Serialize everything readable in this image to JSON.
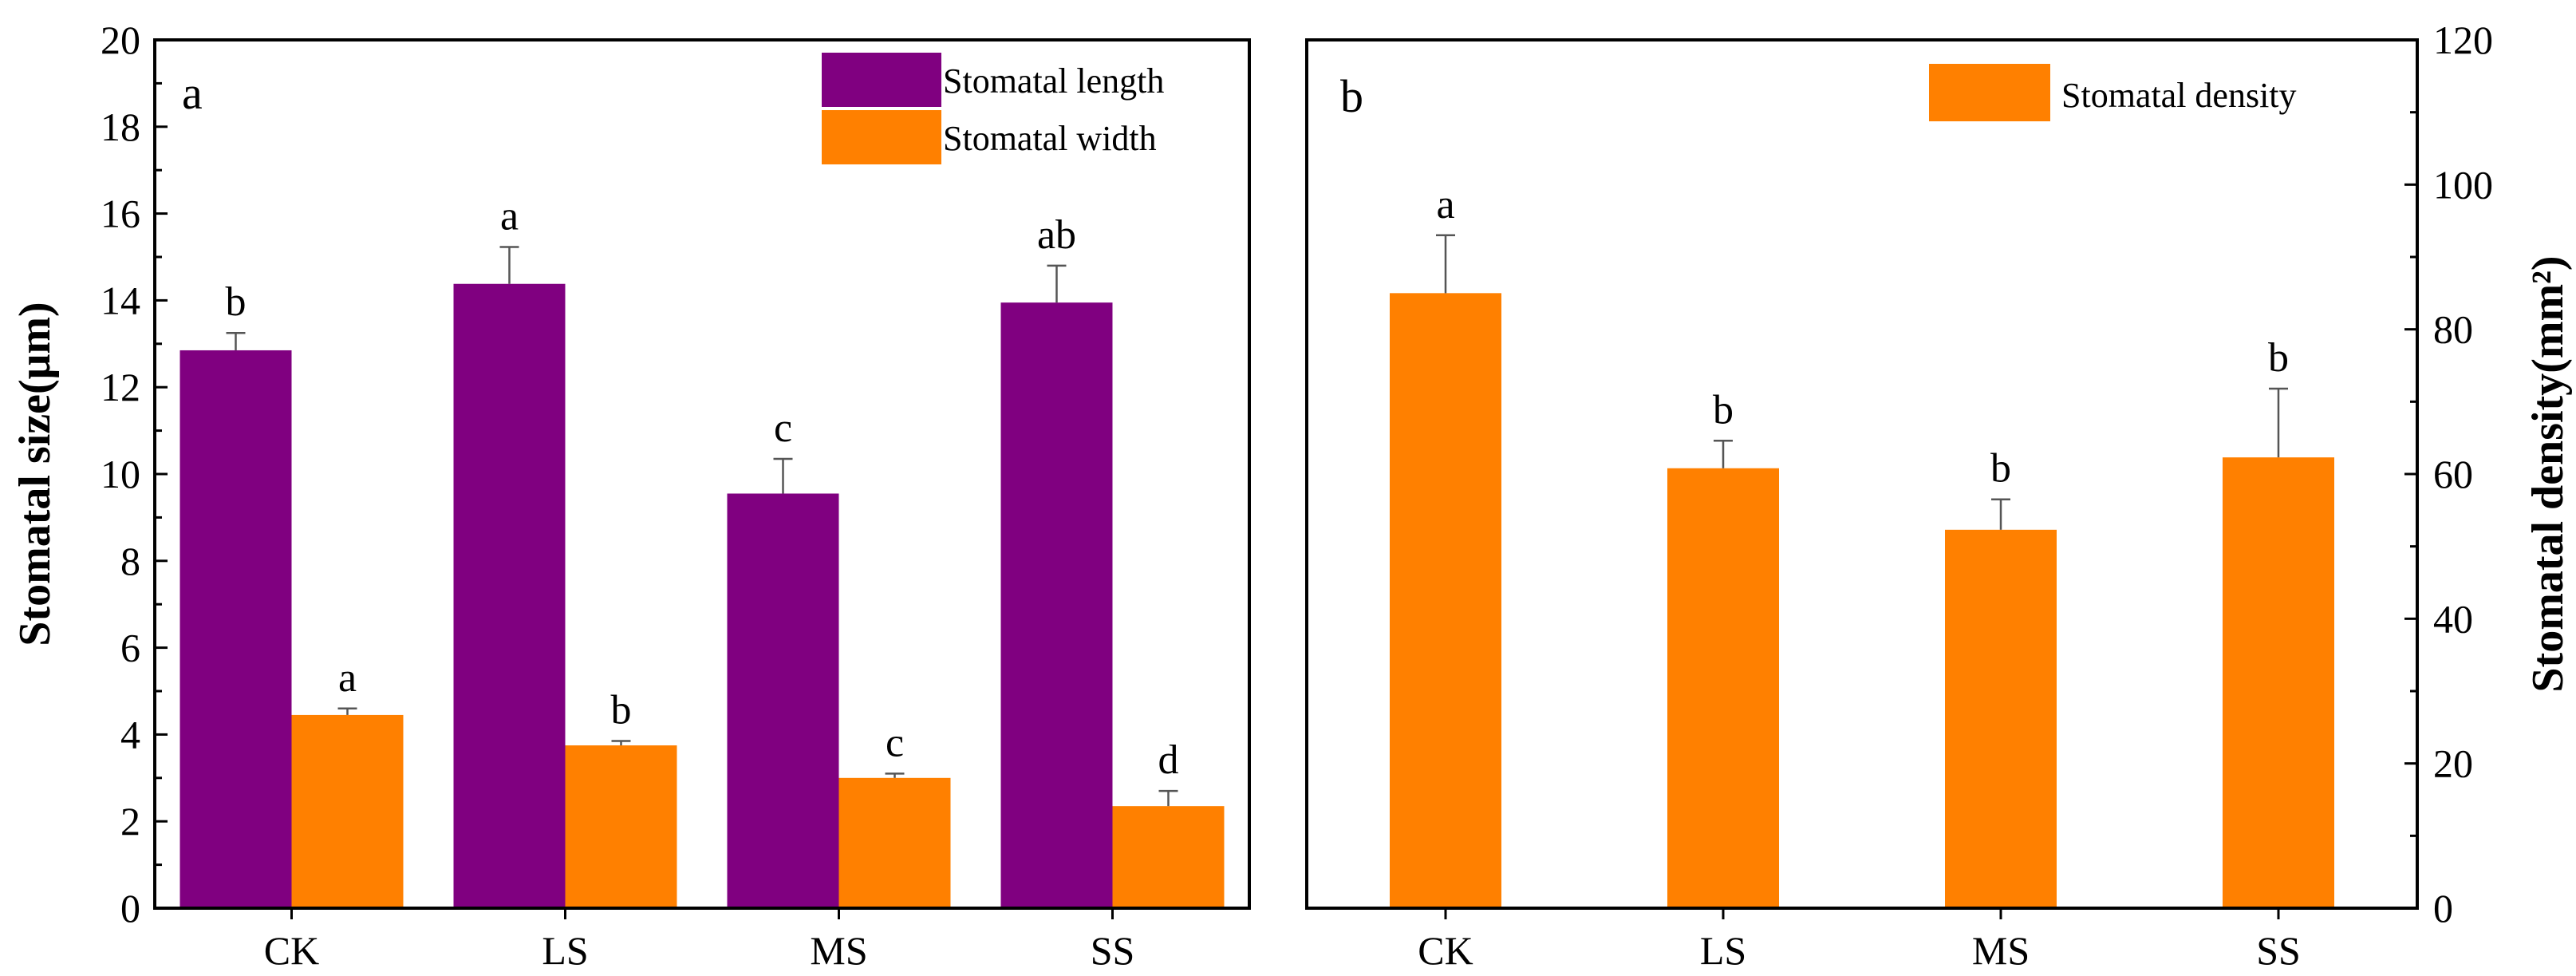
{
  "chart_data": [
    {
      "panel": "a",
      "type": "bar",
      "categories": [
        "CK",
        "LS",
        "MS",
        "SS"
      ],
      "ylabel": "Stomatal size(μm)",
      "ylim": [
        0,
        20
      ],
      "yticks": [
        "0",
        "2",
        "4",
        "6",
        "8",
        "10",
        "12",
        "14",
        "16",
        "18",
        "20"
      ],
      "legend_position": "top-right",
      "series": [
        {
          "name": "Stomatal length",
          "color": "#800080",
          "values": [
            12.85,
            14.38,
            9.55,
            13.95
          ],
          "errors": [
            0.4,
            0.85,
            0.8,
            0.85
          ],
          "letters": [
            "b",
            "a",
            "c",
            "ab"
          ]
        },
        {
          "name": "Stomatal width",
          "color": "#FF8000",
          "values": [
            4.45,
            3.75,
            3.0,
            2.35
          ],
          "errors": [
            0.15,
            0.1,
            0.1,
            0.35
          ],
          "letters": [
            "a",
            "b",
            "c",
            "d"
          ]
        }
      ]
    },
    {
      "panel": "b",
      "type": "bar",
      "categories": [
        "CK",
        "LS",
        "MS",
        "SS"
      ],
      "ylabel": "Stomatal density(mm²)",
      "ylim": [
        0,
        120
      ],
      "yticks": [
        "0",
        "20",
        "40",
        "60",
        "80",
        "100",
        "120"
      ],
      "y_axis_side": "right",
      "legend_position": "top-right",
      "series": [
        {
          "name": "Stomatal density",
          "color": "#FF8000",
          "values": [
            85.0,
            60.8,
            52.3,
            62.3
          ],
          "errors": [
            8.0,
            3.8,
            4.2,
            9.5
          ],
          "letters": [
            "a",
            "b",
            "b",
            "b"
          ]
        }
      ]
    }
  ]
}
